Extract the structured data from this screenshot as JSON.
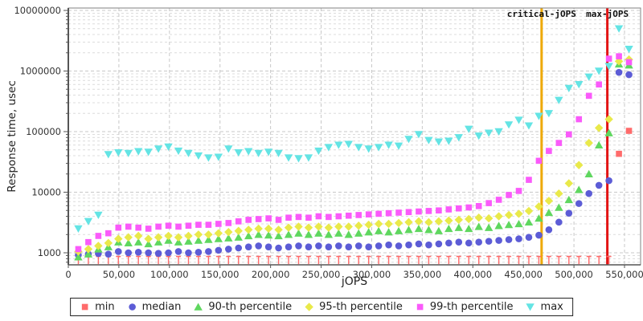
{
  "chart_data": {
    "type": "scatter",
    "title": "",
    "xlabel": "jOPS",
    "ylabel": "Response time, usec",
    "y_scale": "log",
    "grid": true,
    "legend_position": "bottom",
    "xlim": [
      0,
      566000
    ],
    "ylim": [
      630,
      10000000
    ],
    "x_ticks": [
      0,
      50000,
      100000,
      150000,
      200000,
      250000,
      300000,
      350000,
      400000,
      450000,
      500000,
      550000
    ],
    "y_ticks": [
      1000,
      10000,
      100000,
      1000000,
      10000000
    ],
    "annotations": [
      {
        "label": "critical-jOPS",
        "x": 468000,
        "color": "#EEA904"
      },
      {
        "label": "max-jOPS",
        "x": 533000,
        "color": "#E31414"
      }
    ],
    "x": [
      9900,
      19800,
      29700,
      39600,
      49500,
      59400,
      69300,
      79200,
      89100,
      99000,
      108900,
      118800,
      128700,
      138600,
      148500,
      158400,
      168300,
      178200,
      188100,
      198000,
      207900,
      217800,
      227700,
      237600,
      247500,
      257400,
      267300,
      277200,
      287100,
      297000,
      306900,
      316800,
      326700,
      336600,
      346500,
      356400,
      366300,
      376200,
      386100,
      396000,
      405900,
      415800,
      425700,
      435600,
      445500,
      455400,
      465300,
      475200,
      485100,
      495000,
      504900,
      514800,
      524700,
      534600,
      544500,
      554400
    ],
    "series": [
      {
        "name": "min",
        "marker": "impulse-square",
        "color": "#FF6B6B",
        "values": [
          870,
          870,
          870,
          870,
          870,
          870,
          870,
          870,
          870,
          870,
          870,
          870,
          870,
          870,
          870,
          870,
          870,
          870,
          870,
          870,
          870,
          870,
          870,
          870,
          870,
          870,
          870,
          870,
          870,
          870,
          870,
          870,
          870,
          870,
          870,
          870,
          870,
          870,
          870,
          870,
          870,
          870,
          870,
          870,
          870,
          870,
          870,
          870,
          870,
          870,
          870,
          870,
          870,
          870,
          43000,
          103000
        ]
      },
      {
        "name": "median",
        "marker": "circle",
        "color": "#5C5CD6",
        "values": [
          920,
          950,
          970,
          950,
          1050,
          1000,
          1020,
          1000,
          980,
          1000,
          1050,
          1000,
          1020,
          1050,
          1100,
          1150,
          1200,
          1250,
          1300,
          1250,
          1200,
          1250,
          1300,
          1250,
          1300,
          1250,
          1300,
          1250,
          1300,
          1250,
          1300,
          1350,
          1300,
          1350,
          1400,
          1350,
          1400,
          1450,
          1500,
          1450,
          1500,
          1550,
          1600,
          1650,
          1700,
          1800,
          1950,
          2400,
          3200,
          4500,
          6500,
          9500,
          13000,
          15500,
          950000,
          870000
        ]
      },
      {
        "name": "90-th percentile",
        "marker": "triangle-up",
        "color": "#5FD75F",
        "values": [
          850,
          950,
          1150,
          1250,
          1500,
          1450,
          1500,
          1400,
          1500,
          1600,
          1500,
          1550,
          1600,
          1650,
          1700,
          1750,
          1800,
          1900,
          2000,
          1950,
          1900,
          2000,
          2100,
          2000,
          2100,
          2000,
          2100,
          2000,
          2100,
          2200,
          2300,
          2200,
          2300,
          2400,
          2500,
          2400,
          2300,
          2500,
          2600,
          2500,
          2700,
          2600,
          2800,
          2900,
          3000,
          3200,
          3700,
          4600,
          5600,
          7500,
          11000,
          20000,
          60000,
          95000,
          1300000,
          1250000
        ]
      },
      {
        "name": "95-th percentile",
        "marker": "diamond",
        "color": "#E9E94A",
        "values": [
          1050,
          1150,
          1300,
          1450,
          1700,
          1800,
          1900,
          1700,
          1800,
          1900,
          1800,
          1900,
          2000,
          2000,
          2100,
          2200,
          2300,
          2400,
          2500,
          2500,
          2400,
          2600,
          2700,
          2600,
          2700,
          2600,
          2700,
          2700,
          2800,
          2900,
          3000,
          3000,
          3100,
          3200,
          3300,
          3200,
          3300,
          3400,
          3500,
          3600,
          3800,
          3700,
          4000,
          4200,
          4400,
          4900,
          5800,
          7200,
          9500,
          14000,
          28000,
          65000,
          115000,
          160000,
          1450000,
          1550000
        ]
      },
      {
        "name": "99-th percentile",
        "marker": "square",
        "color": "#FA5AFA",
        "values": [
          1150,
          1500,
          1900,
          2100,
          2600,
          2700,
          2600,
          2500,
          2700,
          2800,
          2700,
          2800,
          2900,
          2900,
          3000,
          3100,
          3300,
          3500,
          3600,
          3700,
          3500,
          3800,
          3900,
          3800,
          4000,
          3900,
          4000,
          4100,
          4200,
          4300,
          4400,
          4500,
          4600,
          4700,
          4800,
          4900,
          5000,
          5200,
          5400,
          5600,
          5900,
          6600,
          7500,
          9000,
          10500,
          16000,
          33000,
          48000,
          65000,
          90000,
          160000,
          390000,
          600000,
          1600000,
          1750000,
          1400000
        ]
      },
      {
        "name": "max",
        "marker": "triangle-down",
        "color": "#64E4E4",
        "values": [
          2500,
          3300,
          4200,
          42000,
          45000,
          44000,
          47000,
          46000,
          52000,
          56000,
          48000,
          44000,
          40000,
          37000,
          38000,
          52000,
          45000,
          47000,
          44000,
          46000,
          44000,
          37000,
          36000,
          37000,
          48000,
          55000,
          60000,
          62000,
          55000,
          52000,
          55000,
          60000,
          58000,
          75000,
          90000,
          72000,
          68000,
          70000,
          80000,
          110000,
          85000,
          95000,
          100000,
          130000,
          155000,
          125000,
          180000,
          200000,
          330000,
          520000,
          600000,
          800000,
          1000000,
          1200000,
          5000000,
          2300000
        ]
      }
    ]
  }
}
